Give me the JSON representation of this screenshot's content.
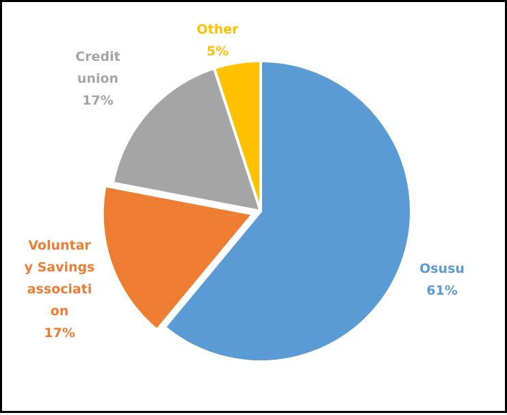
{
  "chart_data": {
    "type": "pie",
    "title": "",
    "start_angle_deg": 0,
    "direction": "clockwise",
    "slices": [
      {
        "label_lines": [
          "Osusu"
        ],
        "percent_label": "61%",
        "value": 61,
        "color": "#5B9BD5",
        "label_color": "#5B9BD5",
        "exploded": false
      },
      {
        "label_lines": [
          "Voluntar",
          "y Savings",
          "associati",
          "on"
        ],
        "percent_label": "17%",
        "value": 17,
        "color": "#ED7D31",
        "label_color": "#ED7D31",
        "exploded": true
      },
      {
        "label_lines": [
          "Credit",
          "union"
        ],
        "percent_label": "17%",
        "value": 17,
        "color": "#A5A5A5",
        "label_color": "#A5A5A5",
        "exploded": false
      },
      {
        "label_lines": [
          "Other"
        ],
        "percent_label": "5%",
        "value": 5,
        "color": "#FFC000",
        "label_color": "#FFC000",
        "exploded": false
      }
    ]
  }
}
